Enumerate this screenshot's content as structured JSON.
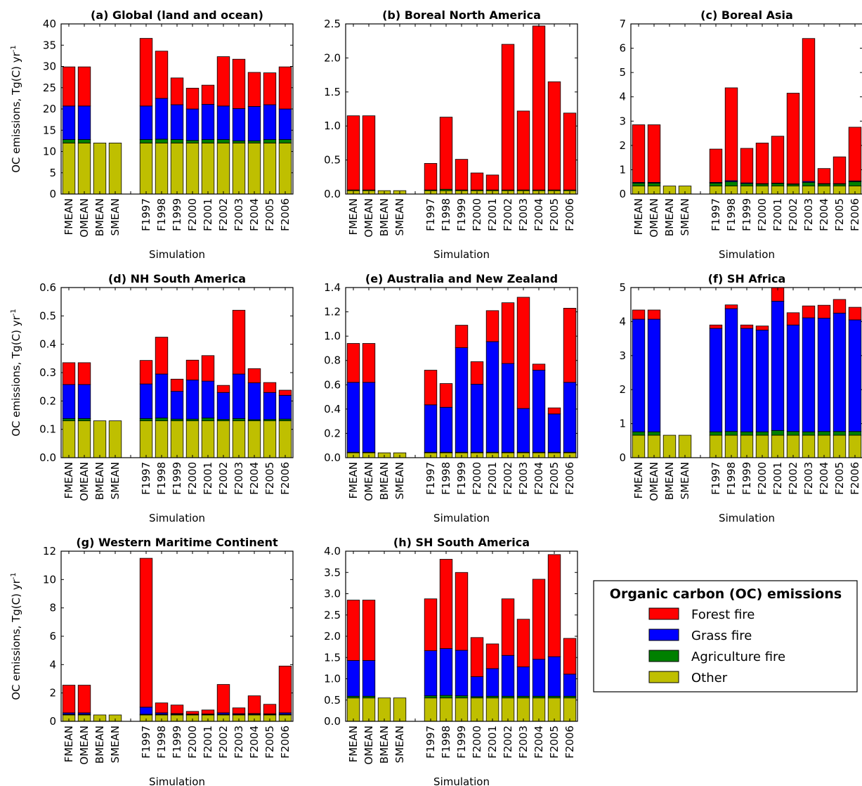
{
  "colors": {
    "forest": "#ff0000",
    "grass": "#0000ff",
    "agriculture": "#008000",
    "other": "#bfbf00"
  },
  "legend": {
    "title": "Organic carbon (OC) emissions",
    "items": [
      {
        "label": "Forest fire",
        "color": "#ff0000"
      },
      {
        "label": "Grass fire",
        "color": "#0000ff"
      },
      {
        "label": "Agriculture fire",
        "color": "#008000"
      },
      {
        "label": "Other",
        "color": "#bfbf00"
      }
    ]
  },
  "chart_data": [
    {
      "type": "bar",
      "stacked": true,
      "title": "(a) Global (land and ocean)",
      "xlabel": "Simulation",
      "ylabel": "OC emissions, Tg(C) yr",
      "ylabel_superscript": "-1",
      "ylim": [
        0,
        40
      ],
      "yticks": [
        "0",
        "5",
        "10",
        "15",
        "20",
        "25",
        "30",
        "35",
        "40"
      ],
      "categories": [
        "FMEAN",
        "OMEAN",
        "BMEAN",
        "SMEAN",
        "",
        "F1997",
        "F1998",
        "F1999",
        "F2000",
        "F2001",
        "F2002",
        "F2003",
        "F2004",
        "F2005",
        "F2006"
      ],
      "series": [
        {
          "name": "Other",
          "values": [
            12.0,
            12.0,
            12.0,
            12.0,
            0,
            12.0,
            12.0,
            12.0,
            12.0,
            12.0,
            12.0,
            12.0,
            12.0,
            12.0,
            12.0
          ]
        },
        {
          "name": "Agriculture fire",
          "values": [
            0.8,
            0.8,
            0,
            0,
            0,
            0.8,
            0.9,
            0.8,
            0.6,
            0.8,
            0.8,
            0.5,
            0.5,
            0.8,
            0.8
          ]
        },
        {
          "name": "Grass fire",
          "values": [
            7.9,
            7.9,
            0,
            0,
            0,
            7.9,
            9.6,
            8.2,
            7.4,
            8.3,
            7.9,
            7.6,
            8.1,
            8.2,
            7.2
          ]
        },
        {
          "name": "Forest fire",
          "values": [
            9.2,
            9.2,
            0,
            0,
            0,
            15.9,
            11.1,
            6.3,
            4.9,
            4.5,
            11.6,
            11.6,
            8.0,
            7.5,
            9.9
          ]
        }
      ]
    },
    {
      "type": "bar",
      "stacked": true,
      "title": "(b) Boreal North America",
      "xlabel": "Simulation",
      "ylabel": "",
      "ylim": [
        0,
        2.5
      ],
      "yticks": [
        "0.0",
        "0.5",
        "1.0",
        "1.5",
        "2.0",
        "2.5"
      ],
      "categories": [
        "FMEAN",
        "OMEAN",
        "BMEAN",
        "SMEAN",
        "",
        "F1997",
        "F1998",
        "F1999",
        "F2000",
        "F2001",
        "F2002",
        "F2003",
        "F2004",
        "F2005",
        "F2006"
      ],
      "series": [
        {
          "name": "Other",
          "values": [
            0.05,
            0.05,
            0.05,
            0.05,
            0,
            0.05,
            0.05,
            0.05,
            0.05,
            0.05,
            0.05,
            0.05,
            0.05,
            0.05,
            0.05
          ]
        },
        {
          "name": "Agriculture fire",
          "values": [
            0.01,
            0.01,
            0,
            0,
            0,
            0.01,
            0.02,
            0.01,
            0.01,
            0.01,
            0.01,
            0.01,
            0.01,
            0.01,
            0.01
          ]
        },
        {
          "name": "Grass fire",
          "values": [
            0,
            0,
            0,
            0,
            0,
            0,
            0,
            0,
            0,
            0,
            0,
            0,
            0,
            0,
            0
          ]
        },
        {
          "name": "Forest fire",
          "values": [
            1.09,
            1.09,
            0,
            0,
            0,
            0.39,
            1.06,
            0.45,
            0.25,
            0.22,
            2.14,
            1.16,
            2.41,
            1.59,
            1.13
          ]
        }
      ]
    },
    {
      "type": "bar",
      "stacked": true,
      "title": "(c) Boreal Asia",
      "xlabel": "Simulation",
      "ylabel": "",
      "ylim": [
        0,
        7
      ],
      "yticks": [
        "0",
        "1",
        "2",
        "3",
        "4",
        "5",
        "6",
        "7"
      ],
      "categories": [
        "FMEAN",
        "OMEAN",
        "BMEAN",
        "SMEAN",
        "",
        "F1997",
        "F1998",
        "F1999",
        "F2000",
        "F2001",
        "F2002",
        "F2003",
        "F2004",
        "F2005",
        "F2006"
      ],
      "series": [
        {
          "name": "Other",
          "values": [
            0.33,
            0.33,
            0.33,
            0.33,
            0,
            0.33,
            0.33,
            0.33,
            0.33,
            0.33,
            0.33,
            0.33,
            0.33,
            0.33,
            0.33
          ]
        },
        {
          "name": "Agriculture fire",
          "values": [
            0.12,
            0.12,
            0,
            0,
            0,
            0.12,
            0.18,
            0.1,
            0.08,
            0.1,
            0.07,
            0.15,
            0.08,
            0.08,
            0.18
          ]
        },
        {
          "name": "Grass fire",
          "values": [
            0.03,
            0.03,
            0,
            0,
            0,
            0.03,
            0.04,
            0.03,
            0.02,
            0.02,
            0.02,
            0.04,
            0.02,
            0.02,
            0.03
          ]
        },
        {
          "name": "Forest fire",
          "values": [
            2.37,
            2.37,
            0,
            0,
            0,
            1.37,
            3.82,
            1.42,
            1.67,
            1.93,
            3.73,
            5.88,
            0.62,
            1.1,
            2.21
          ]
        }
      ]
    },
    {
      "type": "bar",
      "stacked": true,
      "title": "(d) NH South America",
      "xlabel": "Simulation",
      "ylabel": "OC emissions, Tg(C) yr",
      "ylabel_superscript": "-1",
      "ylim": [
        0,
        0.6
      ],
      "yticks": [
        "0.0",
        "0.1",
        "0.2",
        "0.3",
        "0.4",
        "0.5",
        "0.6"
      ],
      "categories": [
        "FMEAN",
        "OMEAN",
        "BMEAN",
        "SMEAN",
        "",
        "F1997",
        "F1998",
        "F1999",
        "F2000",
        "F2001",
        "F2002",
        "F2003",
        "F2004",
        "F2005",
        "F2006"
      ],
      "series": [
        {
          "name": "Other",
          "values": [
            0.13,
            0.13,
            0.13,
            0.13,
            0,
            0.13,
            0.13,
            0.13,
            0.13,
            0.13,
            0.13,
            0.13,
            0.13,
            0.13,
            0.13
          ]
        },
        {
          "name": "Agriculture fire",
          "values": [
            0.008,
            0.008,
            0,
            0,
            0,
            0.008,
            0.01,
            0.006,
            0.006,
            0.01,
            0.005,
            0.008,
            0.004,
            0.005,
            0.006
          ]
        },
        {
          "name": "Grass fire",
          "values": [
            0.12,
            0.12,
            0,
            0,
            0,
            0.122,
            0.155,
            0.098,
            0.138,
            0.13,
            0.095,
            0.157,
            0.13,
            0.095,
            0.084
          ]
        },
        {
          "name": "Forest fire",
          "values": [
            0.077,
            0.077,
            0,
            0,
            0,
            0.083,
            0.13,
            0.043,
            0.07,
            0.09,
            0.025,
            0.225,
            0.05,
            0.035,
            0.018
          ]
        }
      ]
    },
    {
      "type": "bar",
      "stacked": true,
      "title": "(e) Australia and New Zealand",
      "xlabel": "Simulation",
      "ylabel": "",
      "ylim": [
        0,
        1.4
      ],
      "yticks": [
        "0.0",
        "0.2",
        "0.4",
        "0.6",
        "0.8",
        "1.0",
        "1.2",
        "1.4"
      ],
      "categories": [
        "FMEAN",
        "OMEAN",
        "BMEAN",
        "SMEAN",
        "",
        "F1997",
        "F1998",
        "F1999",
        "F2000",
        "F2001",
        "F2002",
        "F2003",
        "F2004",
        "F2005",
        "F2006"
      ],
      "series": [
        {
          "name": "Other",
          "values": [
            0.04,
            0.04,
            0.04,
            0.04,
            0,
            0.04,
            0.04,
            0.04,
            0.04,
            0.04,
            0.04,
            0.04,
            0.04,
            0.04,
            0.04
          ]
        },
        {
          "name": "Agriculture fire",
          "values": [
            0.005,
            0.005,
            0,
            0,
            0,
            0.005,
            0.005,
            0.005,
            0.005,
            0.005,
            0.005,
            0.005,
            0.005,
            0.005,
            0.005
          ]
        },
        {
          "name": "Grass fire",
          "values": [
            0.575,
            0.575,
            0,
            0,
            0,
            0.39,
            0.37,
            0.86,
            0.56,
            0.91,
            0.73,
            0.36,
            0.675,
            0.315,
            0.575
          ]
        },
        {
          "name": "Forest fire",
          "values": [
            0.32,
            0.32,
            0,
            0,
            0,
            0.285,
            0.195,
            0.185,
            0.185,
            0.255,
            0.5,
            0.915,
            0.05,
            0.05,
            0.61
          ]
        }
      ]
    },
    {
      "type": "bar",
      "stacked": true,
      "title": "(f) SH Africa",
      "xlabel": "Simulation",
      "ylabel": "",
      "ylim": [
        0,
        5
      ],
      "yticks": [
        "0",
        "1",
        "2",
        "3",
        "4",
        "5"
      ],
      "categories": [
        "FMEAN",
        "OMEAN",
        "BMEAN",
        "SMEAN",
        "",
        "F1997",
        "F1998",
        "F1999",
        "F2000",
        "F2001",
        "F2002",
        "F2003",
        "F2004",
        "F2005",
        "F2006"
      ],
      "series": [
        {
          "name": "Other",
          "values": [
            0.66,
            0.66,
            0.66,
            0.66,
            0,
            0.66,
            0.66,
            0.66,
            0.66,
            0.66,
            0.66,
            0.66,
            0.66,
            0.66,
            0.66
          ]
        },
        {
          "name": "Agriculture fire",
          "values": [
            0.1,
            0.1,
            0,
            0,
            0,
            0.1,
            0.11,
            0.1,
            0.1,
            0.14,
            0.11,
            0.1,
            0.11,
            0.11,
            0.11
          ]
        },
        {
          "name": "Grass fire",
          "values": [
            3.31,
            3.31,
            0,
            0,
            0,
            3.04,
            3.61,
            3.04,
            2.99,
            3.8,
            3.13,
            3.35,
            3.33,
            3.48,
            3.28
          ]
        },
        {
          "name": "Forest fire",
          "values": [
            0.27,
            0.27,
            0,
            0,
            0,
            0.1,
            0.11,
            0.1,
            0.12,
            0.4,
            0.36,
            0.35,
            0.38,
            0.4,
            0.37
          ]
        }
      ]
    },
    {
      "type": "bar",
      "stacked": true,
      "title": "(g) Western Maritime Continent",
      "xlabel": "Simulation",
      "ylabel": "OC emissions, Tg(C) yr",
      "ylabel_superscript": "-1",
      "ylim": [
        0,
        12
      ],
      "yticks": [
        "0",
        "2",
        "4",
        "6",
        "8",
        "10",
        "12"
      ],
      "categories": [
        "FMEAN",
        "OMEAN",
        "BMEAN",
        "SMEAN",
        "",
        "F1997",
        "F1998",
        "F1999",
        "F2000",
        "F2001",
        "F2002",
        "F2003",
        "F2004",
        "F2005",
        "F2006"
      ],
      "series": [
        {
          "name": "Other",
          "values": [
            0.45,
            0.45,
            0.45,
            0.45,
            0,
            0.45,
            0.45,
            0.45,
            0.45,
            0.45,
            0.45,
            0.45,
            0.45,
            0.45,
            0.45
          ]
        },
        {
          "name": "Agriculture fire",
          "values": [
            0.05,
            0.05,
            0,
            0,
            0,
            0.05,
            0.05,
            0.05,
            0.04,
            0.04,
            0.05,
            0.04,
            0.05,
            0.04,
            0.05
          ]
        },
        {
          "name": "Grass fire",
          "values": [
            0.1,
            0.1,
            0,
            0,
            0,
            0.5,
            0.1,
            0.05,
            0.02,
            0.03,
            0.1,
            0.05,
            0.05,
            0.04,
            0.1
          ]
        },
        {
          "name": "Forest fire",
          "values": [
            1.95,
            1.95,
            0,
            0,
            0,
            10.5,
            0.7,
            0.6,
            0.19,
            0.28,
            2.0,
            0.41,
            1.25,
            0.67,
            3.3
          ]
        }
      ]
    },
    {
      "type": "bar",
      "stacked": true,
      "title": "(h) SH South America",
      "xlabel": "Simulation",
      "ylabel": "",
      "ylim": [
        0,
        4.0
      ],
      "yticks": [
        "0.0",
        "0.5",
        "1.0",
        "1.5",
        "2.0",
        "2.5",
        "3.0",
        "3.5",
        "4.0"
      ],
      "categories": [
        "FMEAN",
        "OMEAN",
        "BMEAN",
        "SMEAN",
        "",
        "F1997",
        "F1998",
        "F1999",
        "F2000",
        "F2001",
        "F2002",
        "F2003",
        "F2004",
        "F2005",
        "F2006"
      ],
      "series": [
        {
          "name": "Other",
          "values": [
            0.55,
            0.55,
            0.55,
            0.55,
            0,
            0.55,
            0.55,
            0.55,
            0.55,
            0.55,
            0.55,
            0.55,
            0.55,
            0.55,
            0.55
          ]
        },
        {
          "name": "Agriculture fire",
          "values": [
            0.04,
            0.04,
            0,
            0,
            0,
            0.05,
            0.06,
            0.05,
            0.03,
            0.04,
            0.04,
            0.04,
            0.04,
            0.04,
            0.04
          ]
        },
        {
          "name": "Grass fire",
          "values": [
            0.84,
            0.84,
            0,
            0,
            0,
            1.06,
            1.1,
            1.07,
            0.47,
            0.65,
            0.96,
            0.69,
            0.87,
            0.93,
            0.52
          ]
        },
        {
          "name": "Forest fire",
          "values": [
            1.42,
            1.42,
            0,
            0,
            0,
            1.22,
            2.1,
            1.83,
            0.92,
            0.58,
            1.33,
            1.12,
            1.88,
            2.4,
            0.84
          ]
        }
      ]
    }
  ]
}
